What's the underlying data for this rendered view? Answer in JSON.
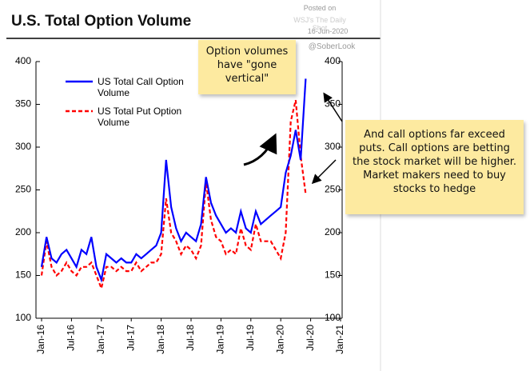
{
  "title": "U.S. Total Option Volume",
  "posted": [
    "Posted on",
    "WSJ's The Daily Shot",
    "16-Jun-2020",
    "@SoberLook"
  ],
  "annotations": [
    "Option volumes have \"gone vertical\"",
    "And call options far exceed puts. Call options are betting the stock market will be higher. Market makers need to buy stocks to hedge"
  ],
  "chart_data": {
    "type": "line",
    "categories": [
      "Jan-16",
      null,
      null,
      null,
      null,
      null,
      "Jul-16",
      null,
      null,
      null,
      null,
      null,
      "Jan-17",
      null,
      null,
      null,
      null,
      null,
      "Jul-17",
      null,
      null,
      null,
      null,
      null,
      "Jan-18",
      null,
      null,
      null,
      null,
      null,
      "Jul-18",
      null,
      null,
      null,
      null,
      null,
      "Jan-19",
      null,
      null,
      null,
      null,
      null,
      "Jul-19",
      null,
      null,
      null,
      null,
      null,
      "Jan-20",
      null,
      null,
      null,
      null,
      null,
      "Jul-20",
      null,
      null,
      null,
      null,
      null,
      "Jan-21"
    ],
    "series": [
      {
        "name": "US Total Call Option Volume",
        "color": "#0000ff",
        "dashed": false,
        "values": [
          160,
          195,
          170,
          165,
          175,
          180,
          170,
          160,
          180,
          175,
          195,
          160,
          145,
          175,
          170,
          165,
          170,
          165,
          165,
          175,
          170,
          175,
          180,
          185,
          200,
          285,
          230,
          205,
          190,
          200,
          195,
          190,
          210,
          265,
          235,
          220,
          210,
          200,
          205,
          200,
          225,
          205,
          200,
          225,
          210,
          215,
          220,
          225,
          230,
          270,
          290,
          320,
          285,
          380,
          null,
          null,
          null,
          null,
          null,
          null,
          null
        ]
      },
      {
        "name": "US Total Put Option Volume",
        "color": "#ff0000",
        "dashed": true,
        "values": [
          150,
          190,
          160,
          150,
          155,
          165,
          155,
          150,
          160,
          160,
          165,
          150,
          135,
          160,
          160,
          155,
          160,
          155,
          155,
          165,
          155,
          160,
          165,
          165,
          175,
          240,
          200,
          190,
          175,
          185,
          180,
          170,
          185,
          260,
          215,
          195,
          190,
          175,
          180,
          175,
          205,
          185,
          180,
          210,
          190,
          190,
          190,
          180,
          170,
          200,
          330,
          355,
          290,
          245,
          null,
          null,
          null,
          null,
          null,
          null,
          null
        ]
      }
    ],
    "ylim": [
      100,
      400
    ],
    "yticks": [
      100,
      150,
      200,
      250,
      300,
      350,
      400
    ],
    "y2lim": [
      100,
      400
    ],
    "y2ticks": [
      100,
      150,
      200,
      250,
      300,
      350,
      400
    ]
  }
}
